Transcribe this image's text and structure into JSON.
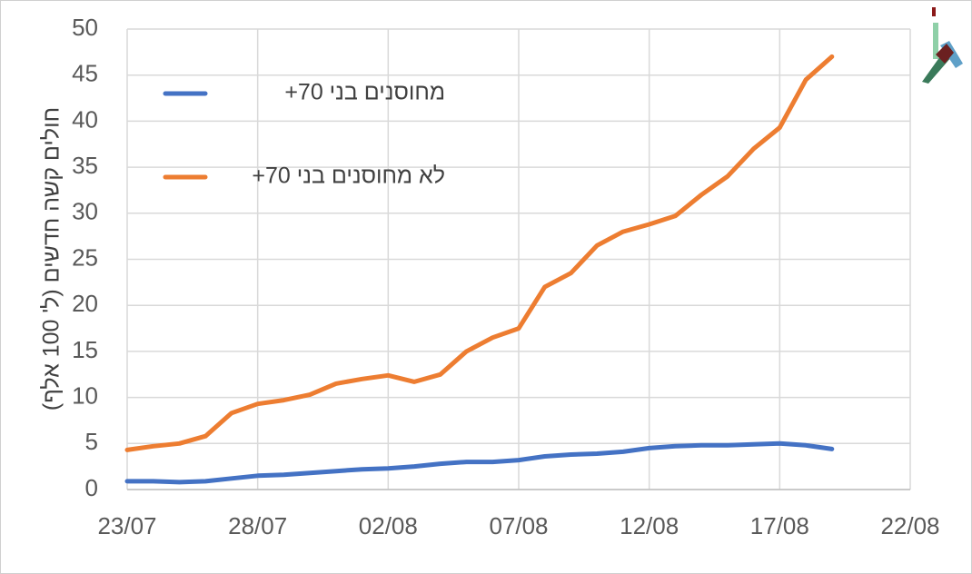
{
  "chart_data": {
    "type": "line",
    "y_label": "חולים קשה חדשים (ל' 100 אלף)",
    "categories": [
      "23/07",
      null,
      null,
      null,
      null,
      "28/07",
      null,
      null,
      null,
      null,
      "02/08",
      null,
      null,
      null,
      null,
      "07/08",
      null,
      null,
      null,
      null,
      "12/08",
      null,
      null,
      null,
      null,
      "17/08",
      null,
      null,
      null,
      null,
      "22/08"
    ],
    "series": [
      {
        "name": "מחוסנים בני 70+",
        "color": "#4472c4",
        "values": [
          0.9,
          0.9,
          0.8,
          0.9,
          1.2,
          1.5,
          1.6,
          1.8,
          2.0,
          2.2,
          2.3,
          2.5,
          2.8,
          3.0,
          3.0,
          3.2,
          3.6,
          3.8,
          3.9,
          4.1,
          4.5,
          4.7,
          4.8,
          4.8,
          4.9,
          5.0,
          4.8,
          4.4,
          null,
          null,
          null
        ]
      },
      {
        "name": "לא מחוסנים בני 70+",
        "color": "#ed7d31",
        "values": [
          4.3,
          4.7,
          5.0,
          5.8,
          8.3,
          9.3,
          9.7,
          10.3,
          11.5,
          12.0,
          12.4,
          11.7,
          12.5,
          15.0,
          16.5,
          17.5,
          22.0,
          23.5,
          26.5,
          28.0,
          28.8,
          29.7,
          32.0,
          34.0,
          37.0,
          39.3,
          44.5,
          47.0,
          null,
          null,
          null
        ]
      }
    ],
    "ylim": [
      0,
      50
    ],
    "yticks": [
      0,
      5,
      10,
      15,
      20,
      25,
      30,
      35,
      40,
      45,
      50
    ],
    "grid": true
  }
}
